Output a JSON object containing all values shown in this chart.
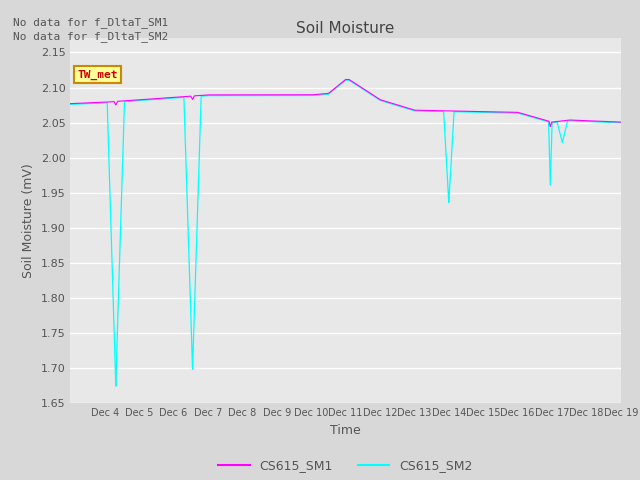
{
  "title": "Soil Moisture",
  "xlabel": "Time",
  "ylabel": "Soil Moisture (mV)",
  "ylim": [
    1.65,
    2.17
  ],
  "yticks": [
    1.65,
    1.7,
    1.75,
    1.8,
    1.85,
    1.9,
    1.95,
    2.0,
    2.05,
    2.1,
    2.15
  ],
  "annotation_text1": "No data for f_DltaT_SM1",
  "annotation_text2": "No data for f_DltaT_SM2",
  "box_label": "TW_met",
  "box_facecolor": "#ffff99",
  "box_edgecolor": "#cc8800",
  "box_text_color": "#cc0000",
  "line1_color": "#ff00ff",
  "line2_color": "#00ffff",
  "legend_labels": [
    "CS615_SM1",
    "CS615_SM2"
  ],
  "fig_bg_color": "#d8d8d8",
  "plot_bg_color": "#e8e8e8",
  "grid_color": "#ffffff",
  "title_color": "#444444",
  "label_color": "#555555",
  "tick_color": "#555555"
}
